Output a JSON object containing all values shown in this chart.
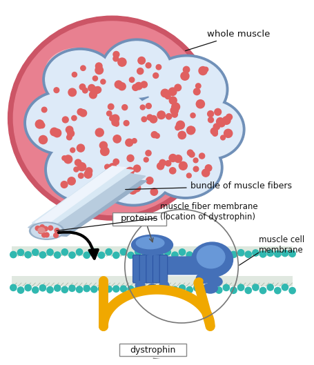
{
  "bg_color": "#ffffff",
  "muscle_dark": "#cc5566",
  "muscle_mid": "#e88090",
  "muscle_light": "#f4b0b8",
  "muscle_highlight": "#fad0d4",
  "fiber_border": "#7090b8",
  "fiber_fill": "#ddeaf8",
  "fiber_dot": "#e06060",
  "tube_light": "#d8e8f4",
  "tube_mid": "#b8ccde",
  "tube_dark": "#98b0c8",
  "tube_cap_fill": "#ccdcec",
  "teal": "#30b8b0",
  "blue_prot": "#4470b8",
  "blue_prot_light": "#6898d8",
  "blue_prot_dark": "#2850a0",
  "dystrophin_color": "#f0a800",
  "black": "#111111",
  "gray": "#888888",
  "labels": {
    "whole_muscle": "whole muscle",
    "bundle": "bundle of muscle fibers",
    "membrane": "muscle fiber membrane\n(location of dystrophin)",
    "proteins": "proteins",
    "cell_membrane": "muscle cell\nmembrane",
    "dystrophin": "dystrophin"
  },
  "figsize": [
    4.55,
    5.29
  ],
  "dpi": 100
}
